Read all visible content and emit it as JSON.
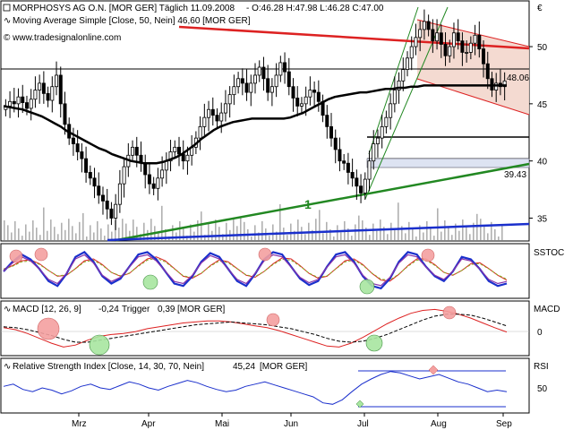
{
  "header": {
    "symbol_line": "MORPHOSYS AG O.N. [MOR GER] Täglich 11.09.2008",
    "ohlc": "- O:46.28 H:47.98 L:46.28 C:47.00",
    "ma_line": "Moving Average Simple [Close, 50, Nein] 46,60 [MOR GER]",
    "copyright": "© www.tradesignalonline.com"
  },
  "panels": {
    "price": {
      "currency_label": "€",
      "last_price_label": "48.06",
      "trendline_label": "39.43",
      "wave_label": "1"
    },
    "sstoc": {
      "label": "SSTOC"
    },
    "macd": {
      "label": "MACD",
      "title_prefix": "MACD [12, 26, 9]",
      "value": "-0,24",
      "trigger_label": "Trigger",
      "trigger_value": "0,39",
      "suffix": "[MOR GER]"
    },
    "rsi": {
      "label": "RSI",
      "title_prefix": "Relative Strength Index [Close, 14, 30, 70, Nein]",
      "value": "45,24",
      "suffix": "[MOR GER]"
    }
  },
  "colors": {
    "candle": "#000000",
    "ma50": "#000000",
    "red_line": "#dd2222",
    "green_line": "#228822",
    "blue_line": "#1a2fcc",
    "channel_fill": "#f3d6cc",
    "signal_red": "#f4a0a0",
    "signal_green": "#a8e6a0",
    "volume": "#b0b0b0"
  },
  "chart_data": [
    {
      "type": "candlestick",
      "title": "MORPHOSYS AG O.N. [MOR GER]",
      "x_ticks": [
        "Mrz",
        "Apr",
        "Mai",
        "Jun",
        "Jul",
        "Aug",
        "Sep"
      ],
      "y_ticks": [
        35,
        40,
        45,
        50
      ],
      "ylim": [
        33,
        54
      ],
      "close_series": [
        44.8,
        45.2,
        45.0,
        45.6,
        45.1,
        44.6,
        45.4,
        46.2,
        46.8,
        45.9,
        45.3,
        46.5,
        47.5,
        45.0,
        43.2,
        42.0,
        41.5,
        40.8,
        40.2,
        39.0,
        38.5,
        37.8,
        37.0,
        36.5,
        35.8,
        35.0,
        36.2,
        38.0,
        39.5,
        40.5,
        41.2,
        40.5,
        39.8,
        38.8,
        38.0,
        37.6,
        38.5,
        39.2,
        40.0,
        40.8,
        41.2,
        40.6,
        40.0,
        40.5,
        41.2,
        42.0,
        43.0,
        43.8,
        44.5,
        44.0,
        43.5,
        44.2,
        45.0,
        45.8,
        46.5,
        47.2,
        46.8,
        46.0,
        46.8,
        47.5,
        48.2,
        47.2,
        46.0,
        46.5,
        47.5,
        48.6,
        47.8,
        46.5,
        45.5,
        44.8,
        45.0,
        45.6,
        46.2,
        46.0,
        45.2,
        44.0,
        43.0,
        42.0,
        41.0,
        40.0,
        39.8,
        39.0,
        38.5,
        37.8,
        37.2,
        38.4,
        40.0,
        41.5,
        42.0,
        43.0,
        43.8,
        45.0,
        46.2,
        47.0,
        48.0,
        49.0,
        50.0,
        50.8,
        51.5,
        52.2,
        51.5,
        50.5,
        51.2,
        50.2,
        49.2,
        50.0,
        51.2,
        50.5,
        49.5,
        49.5,
        50.3,
        51.0,
        49.8,
        48.5,
        47.2,
        46.2,
        46.8,
        46.5,
        47.0
      ],
      "ma50": [
        44.8,
        44.7,
        44.6,
        44.5,
        44.3,
        44.1,
        43.9,
        43.6,
        43.3,
        43.0,
        42.6,
        42.3,
        42.0,
        41.7,
        41.4,
        41.1,
        40.9,
        40.6,
        40.4,
        40.2,
        40.0,
        39.9,
        39.8,
        39.8,
        39.8,
        39.9,
        40.1,
        40.3,
        40.6,
        41.0,
        41.4,
        41.9,
        42.3,
        42.7,
        43.0,
        43.2,
        43.4,
        43.5,
        43.6,
        43.7,
        43.7,
        43.7,
        43.7,
        43.7,
        43.7,
        43.8,
        44.0,
        44.2,
        44.5,
        44.8,
        45.1,
        45.4,
        45.6,
        45.7,
        45.8,
        45.9,
        46.0,
        46.0,
        46.1,
        46.2,
        46.3,
        46.3,
        46.4,
        46.4,
        46.5,
        46.5,
        46.6,
        46.6,
        46.6,
        46.6,
        46.6,
        46.6,
        46.6,
        46.6,
        46.6,
        46.6,
        46.6,
        46.6,
        46.6,
        46.6
      ],
      "annotations": [
        "48.06",
        "39.43",
        "1"
      ]
    },
    {
      "type": "line",
      "name": "SSTOC",
      "series": [
        {
          "name": "fast",
          "values": [
            50,
            70,
            85,
            75,
            55,
            30,
            20,
            45,
            80,
            90,
            70,
            40,
            25,
            35,
            60,
            85,
            90,
            75,
            50,
            25,
            20,
            40,
            70,
            88,
            80,
            55,
            30,
            20,
            45,
            75,
            90,
            85,
            60,
            35,
            22,
            30,
            60,
            85,
            90,
            70,
            40,
            20,
            15,
            35,
            70,
            90,
            85,
            60,
            40,
            30,
            50,
            80,
            75,
            55,
            30,
            20,
            25
          ]
        },
        {
          "name": "slow",
          "values": [
            55,
            62,
            72,
            74,
            66,
            52,
            40,
            42,
            56,
            72,
            76,
            64,
            48,
            40,
            46,
            62,
            76,
            80,
            72,
            56,
            40,
            36,
            46,
            62,
            74,
            70,
            56,
            42,
            38,
            50,
            66,
            78,
            76,
            62,
            46,
            36,
            40,
            56,
            72,
            76,
            64,
            46,
            32,
            30,
            44,
            62,
            76,
            76,
            64,
            48,
            42,
            52,
            66,
            68,
            56,
            42,
            32
          ]
        }
      ],
      "ylim": [
        0,
        100
      ]
    },
    {
      "type": "line",
      "name": "MACD",
      "y_ticks": [
        0
      ],
      "series": [
        {
          "name": "MACD",
          "values": [
            0.2,
            0.0,
            -0.4,
            -0.9,
            -1.4,
            -1.8,
            -1.6,
            -1.1,
            -0.7,
            -0.5,
            -0.4,
            -0.2,
            0.1,
            0.3,
            0.5,
            0.7,
            0.8,
            0.9,
            0.9,
            0.8,
            0.6,
            0.4,
            0.2,
            -0.1,
            -0.5,
            -0.9,
            -1.3,
            -1.7,
            -1.8,
            -1.4,
            -0.8,
            -0.1,
            0.6,
            1.2,
            1.7,
            2.0,
            2.1,
            1.9,
            1.6,
            1.2,
            0.7,
            0.2,
            -0.24
          ]
        },
        {
          "name": "Trigger",
          "values": [
            0.3,
            0.2,
            0.0,
            -0.3,
            -0.6,
            -1.0,
            -1.3,
            -1.3,
            -1.1,
            -0.9,
            -0.7,
            -0.5,
            -0.3,
            -0.1,
            0.1,
            0.3,
            0.5,
            0.6,
            0.7,
            0.8,
            0.7,
            0.6,
            0.5,
            0.3,
            0.1,
            -0.2,
            -0.5,
            -0.9,
            -1.2,
            -1.3,
            -1.2,
            -0.9,
            -0.5,
            0.0,
            0.5,
            1.0,
            1.4,
            1.6,
            1.6,
            1.5,
            1.2,
            0.8,
            0.39
          ]
        }
      ]
    },
    {
      "type": "line",
      "name": "Relative Strength Index",
      "y_ticks": [
        50
      ],
      "series": [
        {
          "name": "RSI",
          "values": [
            52,
            55,
            48,
            45,
            50,
            47,
            42,
            46,
            52,
            55,
            50,
            48,
            53,
            58,
            55,
            50,
            47,
            52,
            56,
            60,
            57,
            52,
            48,
            45,
            47,
            52,
            55,
            58,
            54,
            50,
            46,
            42,
            38,
            30,
            28,
            34,
            45,
            55,
            62,
            68,
            72,
            70,
            66,
            62,
            65,
            68,
            63,
            58,
            55,
            50,
            45,
            47,
            45
          ]
        }
      ],
      "ylim": [
        20,
        80
      ]
    }
  ]
}
